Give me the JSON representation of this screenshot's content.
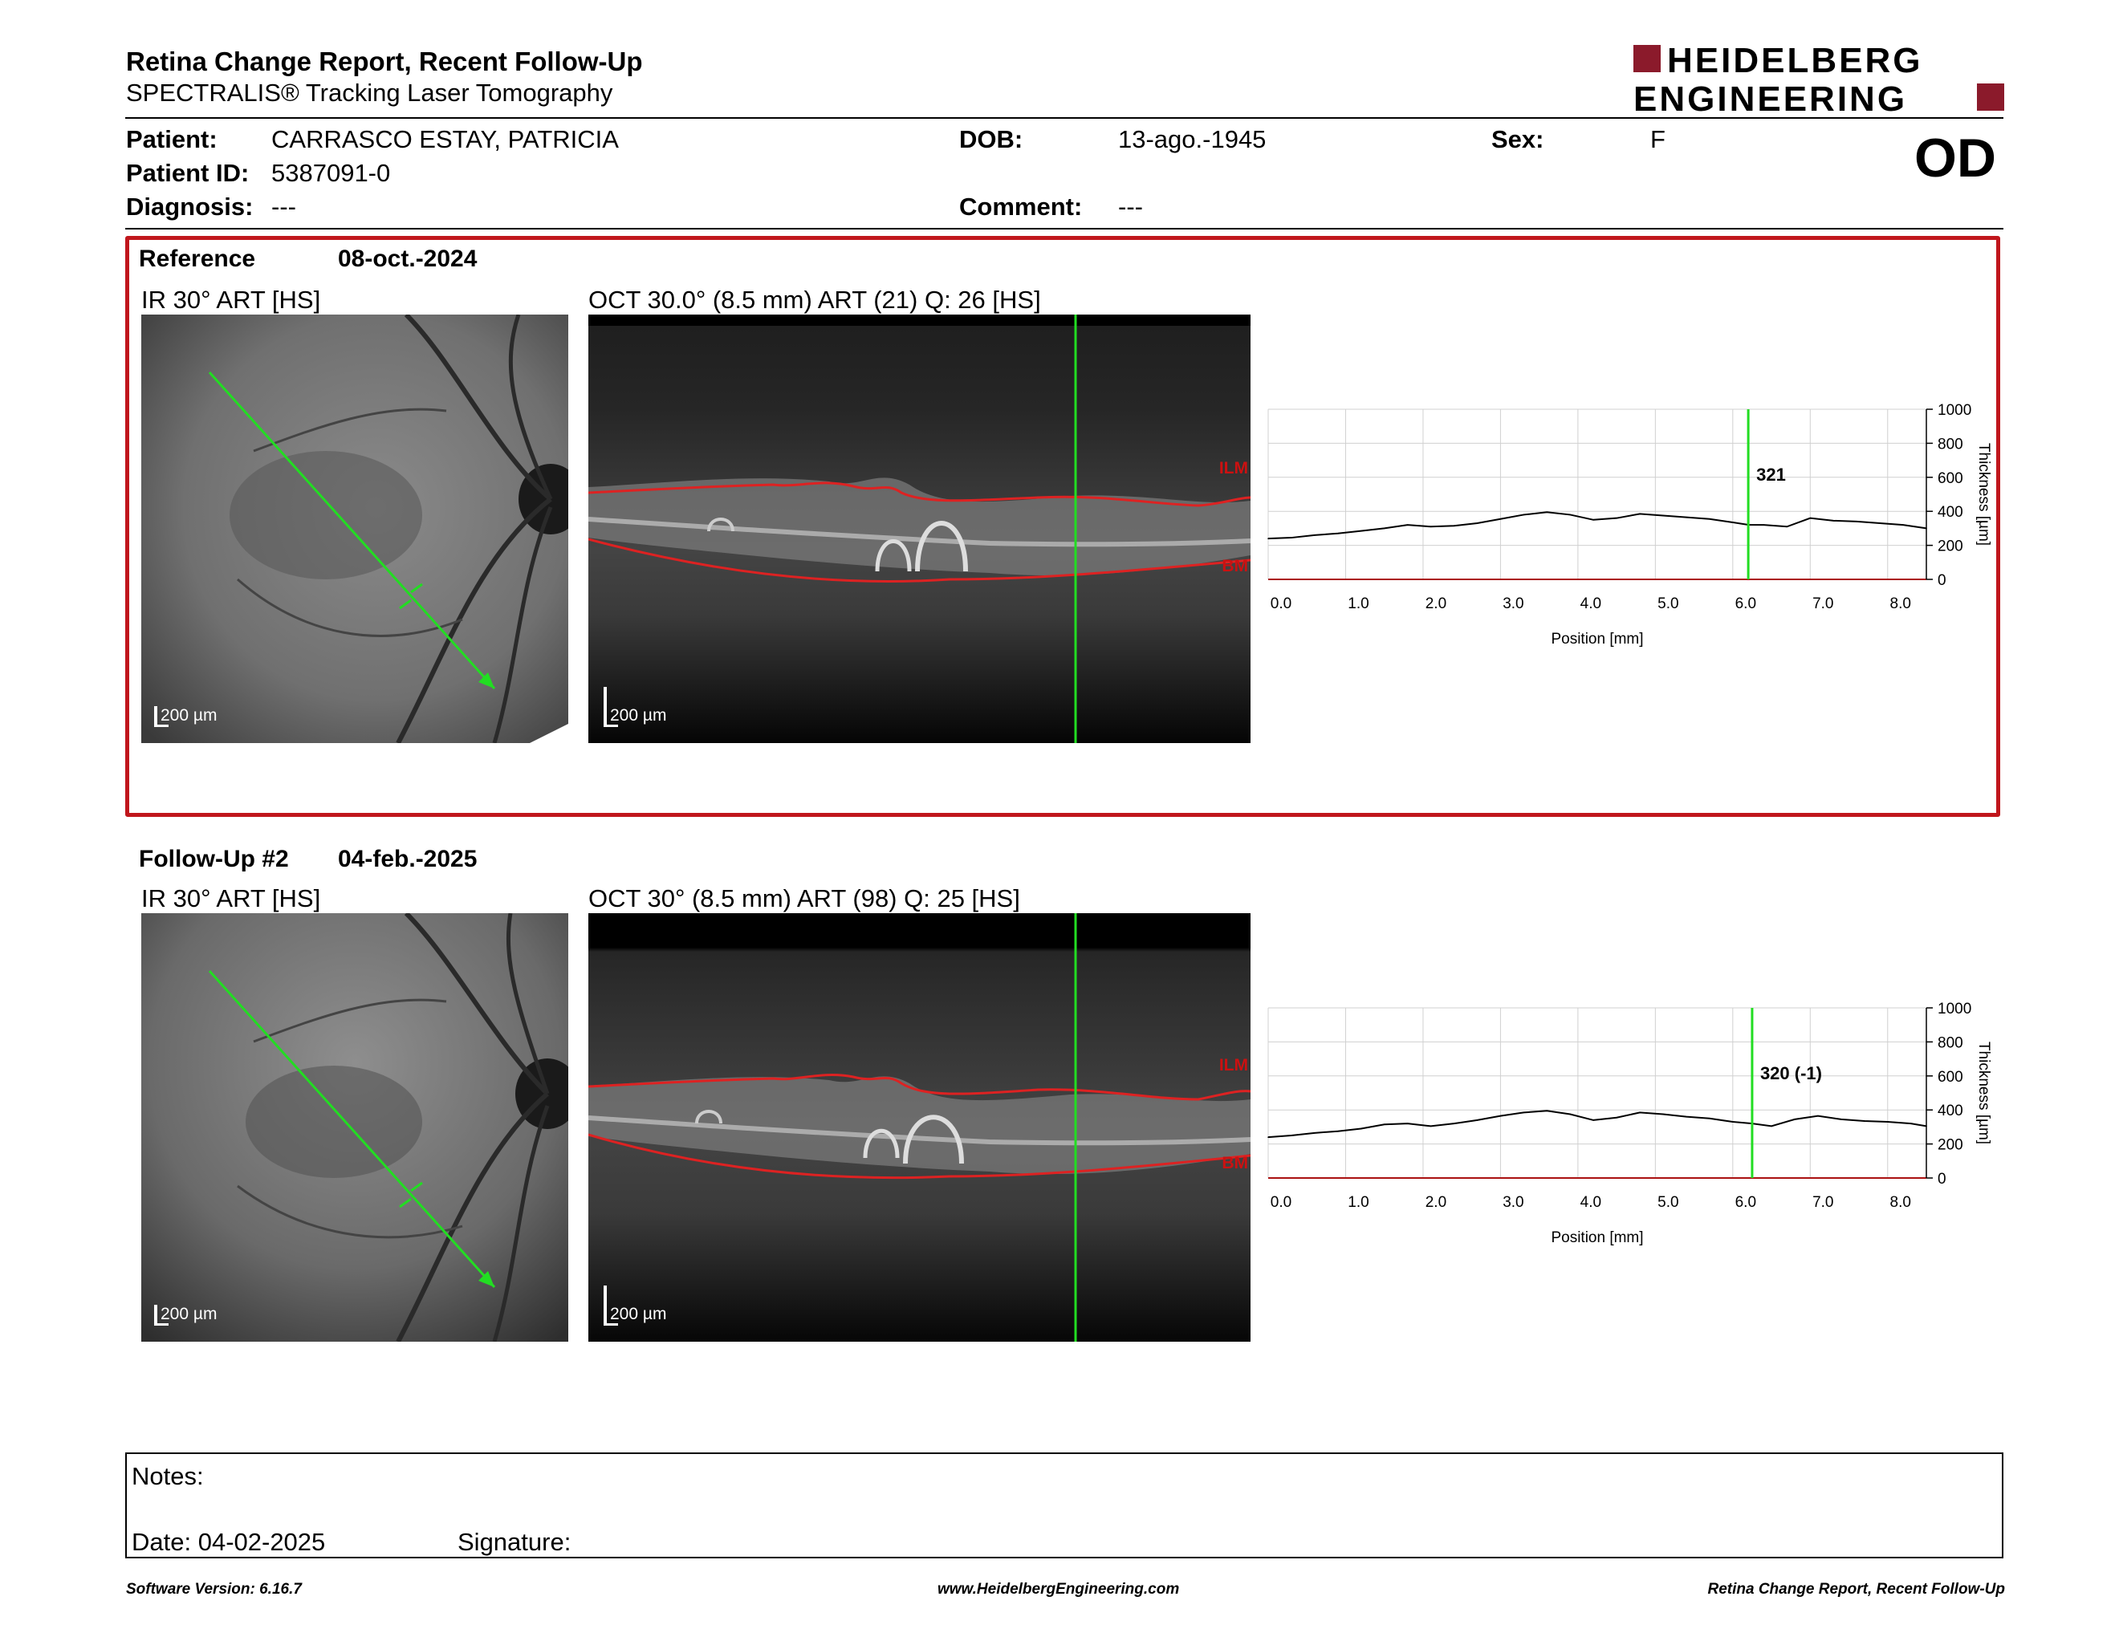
{
  "header": {
    "title": "Retina Change Report, Recent Follow-Up",
    "subtitle": "SPECTRALIS® Tracking Laser Tomography",
    "logo_line1": "HEIDELBERG",
    "logo_line2": "ENGINEERING",
    "eye": "OD",
    "colors": {
      "brand": "#8b1a2b",
      "accent_red": "#c0161c"
    }
  },
  "patient": {
    "name_label": "Patient:",
    "name": "CARRASCO ESTAY, PATRICIA",
    "id_label": "Patient ID:",
    "id": "5387091-0",
    "diagnosis_label": "Diagnosis:",
    "diagnosis": "---",
    "dob_label": "DOB:",
    "dob": "13-ago.-1945",
    "comment_label": "Comment:",
    "comment": "---",
    "sex_label": "Sex:",
    "sex": "F"
  },
  "reference": {
    "label": "Reference",
    "date": "08-oct.-2024",
    "ir_caption": "IR 30° ART [HS]",
    "oct_caption": "OCT 30.0° (8.5 mm) ART (21) Q: 26 [HS]",
    "ir_scale": "200 µm",
    "oct_scale": "200 µm",
    "ilm_label": "ILM",
    "bm_label": "BM",
    "marker_value": "321"
  },
  "followup": {
    "label": "Follow-Up #2",
    "date": "04-feb.-2025",
    "ir_caption": "IR 30° ART [HS]",
    "oct_caption": "OCT 30° (8.5 mm) ART (98) Q: 25 [HS]",
    "ir_scale": "200 µm",
    "oct_scale": "200 µm",
    "ilm_label": "ILM",
    "bm_label": "BM",
    "marker_value": "320 (-1)"
  },
  "chart_data": [
    {
      "type": "line",
      "xlabel": "Position [mm]",
      "ylabel": "Thickness [µm]",
      "xlim": [
        0,
        8.5
      ],
      "ylim": [
        0,
        1000
      ],
      "x_ticks": [
        "0.0",
        "1.0",
        "2.0",
        "3.0",
        "4.0",
        "5.0",
        "6.0",
        "7.0",
        "8.0"
      ],
      "y_ticks": [
        "0",
        "200",
        "400",
        "600",
        "800",
        "1000"
      ],
      "grid": true,
      "marker_x": 6.2,
      "series": [
        {
          "x": [
            0,
            0.3,
            0.6,
            0.9,
            1.2,
            1.5,
            1.8,
            2.1,
            2.4,
            2.7,
            3.0,
            3.3,
            3.6,
            3.9,
            4.2,
            4.5,
            4.8,
            5.1,
            5.4,
            5.7,
            6.0,
            6.2,
            6.4,
            6.7,
            7.0,
            7.3,
            7.6,
            7.9,
            8.2,
            8.5
          ],
          "y": [
            240,
            245,
            260,
            270,
            285,
            300,
            320,
            310,
            315,
            330,
            355,
            380,
            395,
            380,
            350,
            360,
            385,
            375,
            365,
            355,
            335,
            321,
            320,
            310,
            360,
            345,
            340,
            330,
            320,
            300
          ]
        }
      ]
    },
    {
      "type": "line",
      "xlabel": "Position [mm]",
      "ylabel": "Thickness [µm]",
      "xlim": [
        0,
        8.5
      ],
      "ylim": [
        0,
        1000
      ],
      "x_ticks": [
        "0.0",
        "1.0",
        "2.0",
        "3.0",
        "4.0",
        "5.0",
        "6.0",
        "7.0",
        "8.0"
      ],
      "y_ticks": [
        "0",
        "200",
        "400",
        "600",
        "800",
        "1000"
      ],
      "grid": true,
      "marker_x": 6.25,
      "series": [
        {
          "x": [
            0,
            0.3,
            0.6,
            0.9,
            1.2,
            1.5,
            1.8,
            2.1,
            2.4,
            2.7,
            3.0,
            3.3,
            3.6,
            3.9,
            4.2,
            4.5,
            4.8,
            5.1,
            5.4,
            5.7,
            6.0,
            6.25,
            6.5,
            6.8,
            7.1,
            7.4,
            7.7,
            8.0,
            8.3,
            8.5
          ],
          "y": [
            240,
            250,
            265,
            275,
            290,
            315,
            320,
            305,
            320,
            340,
            365,
            385,
            395,
            375,
            340,
            355,
            385,
            375,
            360,
            350,
            330,
            320,
            305,
            345,
            365,
            345,
            335,
            330,
            320,
            305
          ]
        }
      ]
    }
  ],
  "notes": {
    "notes_label": "Notes:",
    "date_label": "Date: 04-02-2025",
    "signature_label": "Signature:"
  },
  "footer": {
    "left": "Software Version: 6.16.7",
    "center": "www.HeidelbergEngineering.com",
    "right": "Retina Change Report, Recent Follow-Up"
  }
}
